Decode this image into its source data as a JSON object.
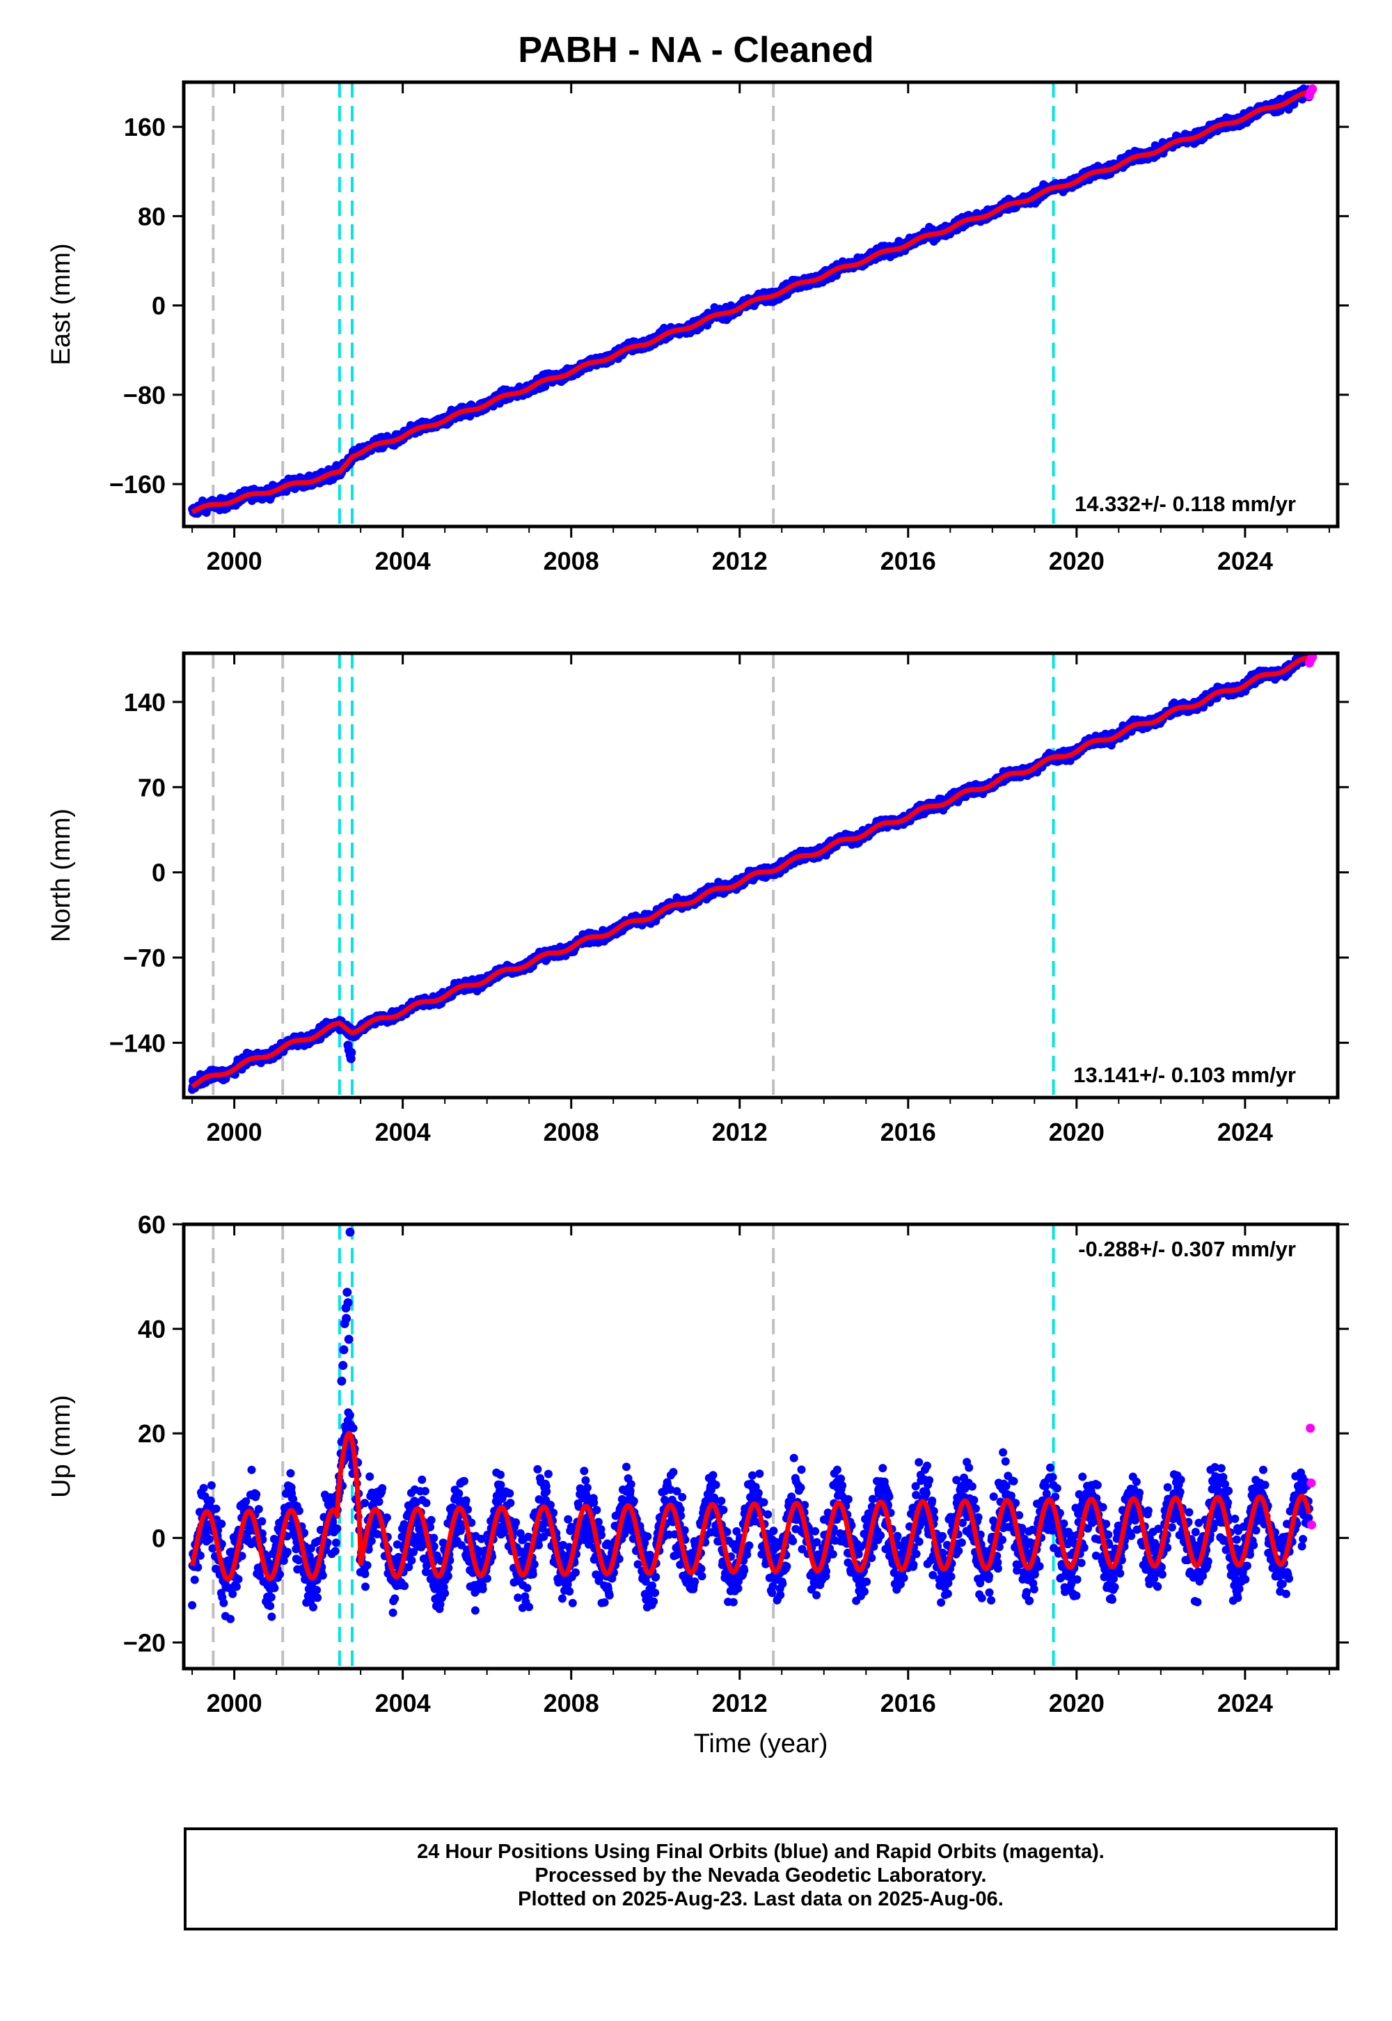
{
  "title": "PABH  - NA - Cleaned",
  "colors": {
    "final_orbits": "#0000ff",
    "rapid_orbits": "#ff00ff",
    "model": "#ff0000",
    "equipment_change": "#c0c0c0",
    "earthquake": "#00e5e5"
  },
  "footer": {
    "line1": "24 Hour Positions Using Final Orbits (blue) and Rapid Orbits (magenta).",
    "line2": "Processed by the Nevada Geodetic Laboratory.",
    "line3": "Plotted on 2025-Aug-23. Last data on 2025-Aug-06."
  },
  "chart_data": [
    {
      "type": "scatter",
      "ylabel": "East (mm)",
      "xlabel": "",
      "xlim": [
        1998.8,
        2026.2
      ],
      "ylim": [
        -198,
        200
      ],
      "xticks": [
        2000,
        2004,
        2008,
        2012,
        2016,
        2020,
        2024
      ],
      "yticks": [
        -160,
        -80,
        0,
        80,
        160
      ],
      "ytick_labels": [
        "−160",
        "−80",
        "0",
        "80",
        "160"
      ],
      "rate_label": "14.332+/- 0.118 mm/yr",
      "vlines_gray": [
        1999.5,
        2001.15,
        2012.8
      ],
      "vlines_cyan": [
        2002.5,
        2002.8,
        2019.45
      ],
      "trend_points": [
        [
          1999.0,
          -184
        ],
        [
          2002.5,
          -150
        ],
        [
          2002.8,
          -134
        ],
        [
          2012.8,
          10
        ],
        [
          2025.5,
          190
        ]
      ],
      "seasonal_amplitude": 1.5,
      "scatter_noise": 3.5,
      "rapid_points": [
        [
          2025.53,
          188
        ],
        [
          2025.57,
          192
        ],
        [
          2025.6,
          194
        ]
      ],
      "series": [
        {
          "name": "Final Orbits (blue)",
          "values": []
        },
        {
          "name": "Rapid Orbits (magenta)",
          "values": []
        }
      ]
    },
    {
      "type": "scatter",
      "ylabel": "North (mm)",
      "xlabel": "",
      "xlim": [
        1998.8,
        2026.2
      ],
      "ylim": [
        -185,
        180
      ],
      "xticks": [
        2000,
        2004,
        2008,
        2012,
        2016,
        2020,
        2024
      ],
      "yticks": [
        -140,
        -70,
        0,
        70,
        140
      ],
      "ytick_labels": [
        "−140",
        "−70",
        "0",
        "70",
        "140"
      ],
      "rate_label": "13.141+/- 0.103 mm/yr",
      "vlines_gray": [
        1999.5,
        2001.15,
        2012.8
      ],
      "vlines_cyan": [
        2002.5,
        2002.8,
        2019.45
      ],
      "trend_points": [
        [
          1999.0,
          -175
        ],
        [
          2002.5,
          -125
        ],
        [
          2002.8,
          -130
        ],
        [
          2012.8,
          3
        ],
        [
          2025.5,
          175
        ]
      ],
      "seasonal_amplitude": 2.0,
      "scatter_noise": 3.0,
      "outlier_points": [
        [
          2002.7,
          -142
        ],
        [
          2002.72,
          -146
        ],
        [
          2002.75,
          -150
        ],
        [
          2002.77,
          -153
        ],
        [
          2002.78,
          -148
        ]
      ],
      "rapid_points": [
        [
          2025.53,
          172
        ],
        [
          2025.57,
          175
        ],
        [
          2025.6,
          177
        ]
      ],
      "series": [
        {
          "name": "Final Orbits (blue)",
          "values": []
        },
        {
          "name": "Rapid Orbits (magenta)",
          "values": []
        }
      ]
    },
    {
      "type": "scatter",
      "ylabel": "Up (mm)",
      "xlabel": "Time (year)",
      "xlim": [
        1998.8,
        2026.2
      ],
      "ylim": [
        -25,
        60
      ],
      "xticks": [
        2000,
        2004,
        2008,
        2012,
        2016,
        2020,
        2024
      ],
      "yticks": [
        -20,
        0,
        20,
        40,
        60
      ],
      "ytick_labels": [
        "−20",
        "0",
        "20",
        "40",
        "60"
      ],
      "rate_label": "-0.288+/- 0.307 mm/yr",
      "vlines_gray": [
        1999.5,
        2001.15,
        2012.8
      ],
      "vlines_cyan": [
        2002.5,
        2002.8,
        2019.45
      ],
      "trend_points": [
        [
          1999.0,
          -1.5
        ],
        [
          2025.5,
          1.5
        ]
      ],
      "seasonal_amplitude": 6.5,
      "scatter_noise": 5.0,
      "spike": {
        "start": 2002.45,
        "end": 2003.0,
        "peak": 20
      },
      "outlier_points": [
        [
          2002.55,
          30
        ],
        [
          2002.6,
          36
        ],
        [
          2002.62,
          41
        ],
        [
          2002.65,
          44
        ],
        [
          2002.68,
          47
        ],
        [
          2002.7,
          45
        ],
        [
          2002.72,
          38
        ],
        [
          2002.75,
          58.5
        ],
        [
          2002.58,
          33
        ],
        [
          2002.66,
          42
        ]
      ],
      "rapid_points": [
        [
          2025.55,
          21
        ],
        [
          2025.57,
          10.5
        ],
        [
          2025.58,
          2.5
        ]
      ],
      "series": [
        {
          "name": "Final Orbits (blue)",
          "values": []
        },
        {
          "name": "Rapid Orbits (magenta)",
          "values": []
        }
      ]
    }
  ]
}
